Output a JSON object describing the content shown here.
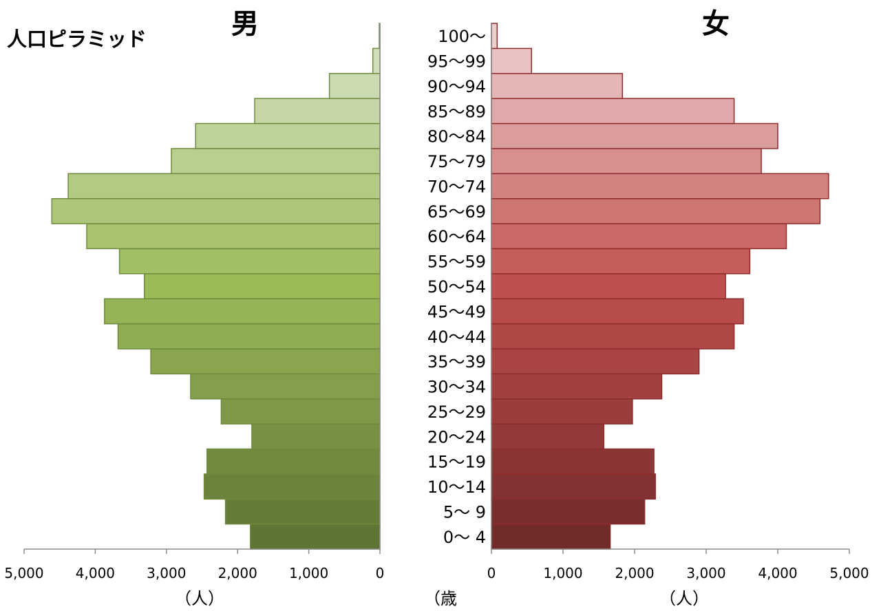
{
  "chart_data": {
    "type": "bar",
    "title": "人口ピラミッド",
    "left_title": "男",
    "right_title": "女",
    "categories": [
      "0〜 4",
      "5〜 9",
      "10〜14",
      "15〜19",
      "20〜24",
      "25〜29",
      "30〜34",
      "35〜39",
      "40〜44",
      "45〜49",
      "50〜54",
      "55〜59",
      "60〜64",
      "65〜69",
      "70〜74",
      "75〜79",
      "80〜84",
      "85〜89",
      "90〜94",
      "95〜99",
      "100〜"
    ],
    "series": [
      {
        "name": "男",
        "values": [
          1820,
          2170,
          2470,
          2430,
          1800,
          2230,
          2660,
          3220,
          3680,
          3870,
          3310,
          3660,
          4120,
          4610,
          4380,
          2930,
          2590,
          1760,
          710,
          100,
          10
        ]
      },
      {
        "name": "女",
        "values": [
          1660,
          2140,
          2290,
          2270,
          1570,
          1970,
          2380,
          2900,
          3390,
          3520,
          3270,
          3610,
          4120,
          4590,
          4710,
          3770,
          4000,
          3390,
          1830,
          560,
          80
        ]
      }
    ],
    "xlim": [
      0,
      5000
    ],
    "xticks": [
      "0",
      "1,000",
      "2,000",
      "3,000",
      "4,000",
      "5,000"
    ],
    "x_unit_label": "（人）",
    "age_unit_label": "（歳",
    "colors": {
      "male_top": "#d5e3c4",
      "male_mid": "#9bbb59",
      "male_bottom": "#5f7535",
      "male_stroke": "#6e8a3c",
      "female_top": "#edcfd0",
      "female_mid": "#c0504d",
      "female_bottom": "#722b2b",
      "female_stroke": "#8e2c2c"
    }
  }
}
